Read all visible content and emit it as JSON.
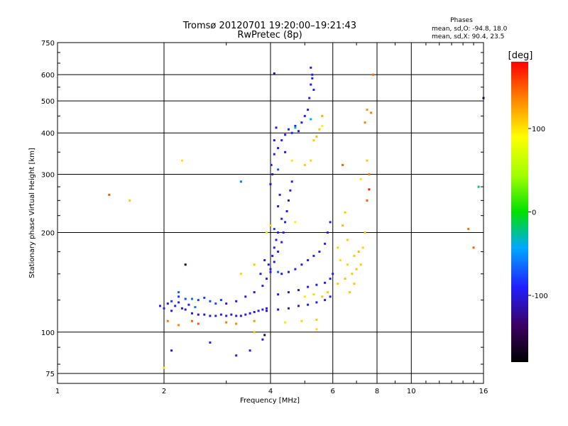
{
  "header": {
    "title_line1": "Tromsø 20120701 19:20:00–19:21:43",
    "title_line2": "RwPretec (8p)",
    "phases_title": "Phases",
    "phases_o": "mean, sd,O: -94.8, 18.0",
    "phases_x": "mean, sd,X:  90.4, 23.5"
  },
  "colorbar": {
    "label": "deg",
    "range": [
      -180,
      180
    ],
    "ticks": [
      "100",
      "0",
      "-100"
    ],
    "tick_values": [
      100,
      0,
      -100
    ]
  },
  "chart_data": {
    "type": "scatter",
    "title": "Tromsø 20120701 19:20:00–19:21:43",
    "subtitle": "RwPretec (8p)",
    "xlabel": "Frequency [MHz]",
    "ylabel": "Stationary phase Virtual Height [km]",
    "x_scale": "log",
    "y_scale": "log",
    "xlim": [
      1,
      16
    ],
    "ylim": [
      70,
      750
    ],
    "x_ticks": [
      1,
      2,
      4,
      6,
      8,
      10,
      16
    ],
    "x_tick_labels": [
      "1",
      "2",
      "4",
      "6",
      "8",
      "10",
      "16"
    ],
    "y_ticks": [
      75,
      100,
      200,
      300,
      400,
      500,
      600,
      750
    ],
    "y_tick_labels": [
      "75",
      "100",
      "200",
      "300",
      "400",
      "500",
      "600",
      "750"
    ],
    "grid": true,
    "color_encoding": "phase [deg]",
    "series": [
      {
        "columns": [
          "frequency_mhz",
          "virtual_height_km",
          "phase_deg"
        ],
        "points": [
          [
            1.95,
            120,
            -90
          ],
          [
            2.0,
            118,
            -95
          ],
          [
            2.05,
            122,
            -90
          ],
          [
            2.1,
            116,
            -98
          ],
          [
            2.15,
            120,
            -92
          ],
          [
            2.2,
            123,
            -88
          ],
          [
            2.25,
            118,
            -95
          ],
          [
            2.3,
            117,
            -96
          ],
          [
            2.35,
            121,
            -90
          ],
          [
            2.4,
            114,
            -100
          ],
          [
            2.5,
            113,
            -100
          ],
          [
            2.6,
            113,
            -100
          ],
          [
            2.7,
            112,
            -102
          ],
          [
            2.8,
            112,
            -100
          ],
          [
            2.9,
            113,
            -95
          ],
          [
            3.0,
            112,
            -98
          ],
          [
            3.1,
            113,
            -100
          ],
          [
            3.2,
            112,
            -100
          ],
          [
            3.3,
            112,
            -102
          ],
          [
            3.4,
            113,
            -98
          ],
          [
            3.5,
            114,
            -96
          ],
          [
            3.6,
            115,
            -95
          ],
          [
            3.7,
            116,
            -94
          ],
          [
            3.8,
            117,
            -96
          ],
          [
            3.9,
            118,
            -95
          ],
          [
            2.1,
            124,
            -80
          ],
          [
            2.3,
            126,
            -78
          ],
          [
            2.5,
            125,
            -80
          ],
          [
            2.7,
            124,
            -76
          ],
          [
            2.9,
            125,
            -80
          ],
          [
            2.2,
            128,
            -85
          ],
          [
            2.6,
            127,
            -82
          ],
          [
            2.8,
            122,
            -75
          ],
          [
            3.0,
            122,
            -105
          ],
          [
            3.2,
            124,
            -102
          ],
          [
            3.4,
            128,
            -100
          ],
          [
            3.6,
            132,
            -98
          ],
          [
            3.8,
            138,
            -96
          ],
          [
            3.9,
            145,
            -95
          ],
          [
            4.0,
            152,
            -94
          ],
          [
            3.95,
            160,
            -96
          ],
          [
            4.05,
            170,
            -94
          ],
          [
            4.1,
            180,
            -96
          ],
          [
            4.15,
            190,
            -94
          ],
          [
            4.2,
            200,
            -95
          ],
          [
            3.85,
            165,
            -100
          ],
          [
            3.75,
            150,
            -98
          ],
          [
            4.0,
            155,
            -100
          ],
          [
            4.1,
            163,
            -98
          ],
          [
            4.2,
            175,
            -95
          ],
          [
            4.3,
            187,
            -94
          ],
          [
            4.35,
            200,
            -95
          ],
          [
            4.4,
            215,
            -96
          ],
          [
            4.45,
            232,
            -98
          ],
          [
            4.5,
            250,
            -100
          ],
          [
            4.55,
            268,
            -98
          ],
          [
            4.6,
            285,
            -96
          ],
          [
            4.2,
            240,
            -98
          ],
          [
            4.3,
            220,
            -96
          ],
          [
            4.25,
            260,
            -95
          ],
          [
            4.0,
            280,
            -110
          ],
          [
            4.05,
            300,
            -105
          ],
          [
            4.02,
            320,
            -100
          ],
          [
            4.1,
            345,
            -98
          ],
          [
            4.2,
            360,
            -96
          ],
          [
            4.3,
            380,
            -95
          ],
          [
            4.4,
            395,
            -96
          ],
          [
            4.5,
            410,
            -94
          ],
          [
            4.6,
            400,
            -95
          ],
          [
            4.7,
            420,
            -95
          ],
          [
            4.8,
            405,
            -92
          ],
          [
            4.9,
            430,
            -94
          ],
          [
            5.0,
            450,
            -95
          ],
          [
            5.1,
            470,
            -96
          ],
          [
            5.15,
            510,
            -95
          ],
          [
            5.2,
            560,
            -98
          ],
          [
            5.25,
            600,
            -100
          ],
          [
            5.2,
            630,
            -100
          ],
          [
            5.25,
            585,
            -96
          ],
          [
            5.3,
            540,
            -95
          ],
          [
            4.1,
            380,
            -105
          ],
          [
            4.4,
            350,
            -100
          ],
          [
            4.15,
            415,
            -100
          ],
          [
            4.3,
            150,
            -100
          ],
          [
            4.5,
            152,
            -98
          ],
          [
            4.7,
            155,
            -96
          ],
          [
            4.9,
            160,
            -95
          ],
          [
            5.1,
            165,
            -94
          ],
          [
            5.3,
            170,
            -95
          ],
          [
            5.5,
            175,
            -96
          ],
          [
            5.7,
            185,
            -95
          ],
          [
            5.8,
            200,
            -94
          ],
          [
            5.9,
            215,
            -95
          ],
          [
            4.2,
            130,
            -100
          ],
          [
            4.5,
            132,
            -98
          ],
          [
            4.8,
            134,
            -96
          ],
          [
            5.1,
            137,
            -95
          ],
          [
            5.4,
            139,
            -96
          ],
          [
            5.7,
            141,
            -95
          ],
          [
            5.9,
            145,
            -94
          ],
          [
            6.0,
            150,
            -96
          ],
          [
            3.9,
            116,
            -102
          ],
          [
            4.2,
            117,
            -100
          ],
          [
            4.5,
            118,
            -98
          ],
          [
            4.8,
            120,
            -96
          ],
          [
            5.1,
            121,
            -98
          ],
          [
            5.4,
            123,
            -96
          ],
          [
            5.7,
            125,
            -95
          ],
          [
            5.9,
            128,
            -94
          ],
          [
            4.2,
            152,
            -70
          ],
          [
            4.1,
            205,
            -75
          ],
          [
            4.2,
            310,
            -70
          ],
          [
            5.2,
            440,
            -40
          ],
          [
            4.7,
            415,
            -30
          ],
          [
            2.4,
            126,
            -65
          ],
          [
            2.45,
            119,
            -60
          ],
          [
            2.2,
            132,
            -70
          ],
          [
            5.3,
            380,
            110
          ],
          [
            5.4,
            390,
            115
          ],
          [
            5.5,
            410,
            110
          ],
          [
            5.6,
            450,
            120
          ],
          [
            5.2,
            330,
            105
          ],
          [
            5.0,
            320,
            108
          ],
          [
            4.6,
            330,
            100
          ],
          [
            5.6,
            420,
            95
          ],
          [
            3.9,
            200,
            100
          ],
          [
            4.0,
            210,
            105
          ],
          [
            3.6,
            160,
            110
          ],
          [
            3.3,
            150,
            105
          ],
          [
            6.2,
            140,
            110
          ],
          [
            6.5,
            145,
            115
          ],
          [
            6.8,
            150,
            110
          ],
          [
            7.0,
            155,
            112
          ],
          [
            7.2,
            160,
            108
          ],
          [
            6.6,
            160,
            105
          ],
          [
            6.9,
            170,
            110
          ],
          [
            7.1,
            175,
            115
          ],
          [
            6.3,
            165,
            100
          ],
          [
            6.2,
            180,
            105
          ],
          [
            6.4,
            210,
            115
          ],
          [
            6.5,
            230,
            110
          ],
          [
            6.6,
            190,
            108
          ],
          [
            7.3,
            180,
            105
          ],
          [
            7.4,
            200,
            110
          ],
          [
            6.9,
            140,
            112
          ],
          [
            6.7,
            132,
            110
          ],
          [
            5.0,
            128,
            100
          ],
          [
            5.3,
            130,
            105
          ],
          [
            5.6,
            128,
            110
          ],
          [
            5.8,
            132,
            108
          ],
          [
            4.4,
            107,
            100
          ],
          [
            4.9,
            108,
            105
          ],
          [
            5.4,
            109,
            110
          ],
          [
            3.0,
            107,
            140
          ],
          [
            3.2,
            106,
            135
          ],
          [
            3.6,
            108,
            130
          ],
          [
            2.5,
            106,
            150
          ],
          [
            2.4,
            108,
            145
          ],
          [
            2.2,
            105,
            135
          ],
          [
            2.05,
            108,
            140
          ],
          [
            7.5,
            470,
            130
          ],
          [
            7.7,
            460,
            140
          ],
          [
            7.8,
            600,
            145
          ],
          [
            7.4,
            430,
            135
          ],
          [
            6.4,
            320,
            150
          ],
          [
            7.6,
            300,
            140
          ],
          [
            7.5,
            250,
            150
          ],
          [
            7.6,
            270,
            170
          ],
          [
            15.0,
            180,
            150
          ],
          [
            14.5,
            205,
            140
          ],
          [
            7.2,
            290,
            100
          ],
          [
            7.5,
            330,
            110
          ],
          [
            1.4,
            260,
            150
          ],
          [
            1.6,
            250,
            110
          ],
          [
            2.1,
            88,
            -110
          ],
          [
            2.7,
            93,
            -90
          ],
          [
            3.2,
            85,
            -95
          ],
          [
            3.8,
            95,
            -105
          ],
          [
            3.5,
            88,
            -100
          ],
          [
            2.0,
            78,
            100
          ],
          [
            3.85,
            98,
            -150
          ],
          [
            2.3,
            160,
            -160
          ],
          [
            4.1,
            605,
            -120
          ],
          [
            16.0,
            510,
            -140
          ],
          [
            15.5,
            275,
            -20
          ],
          [
            2.25,
            330,
            100
          ],
          [
            3.3,
            285,
            -60
          ],
          [
            3.6,
            100,
            115
          ],
          [
            5.4,
            102,
            105
          ],
          [
            4.7,
            215,
            95
          ]
        ]
      }
    ]
  }
}
